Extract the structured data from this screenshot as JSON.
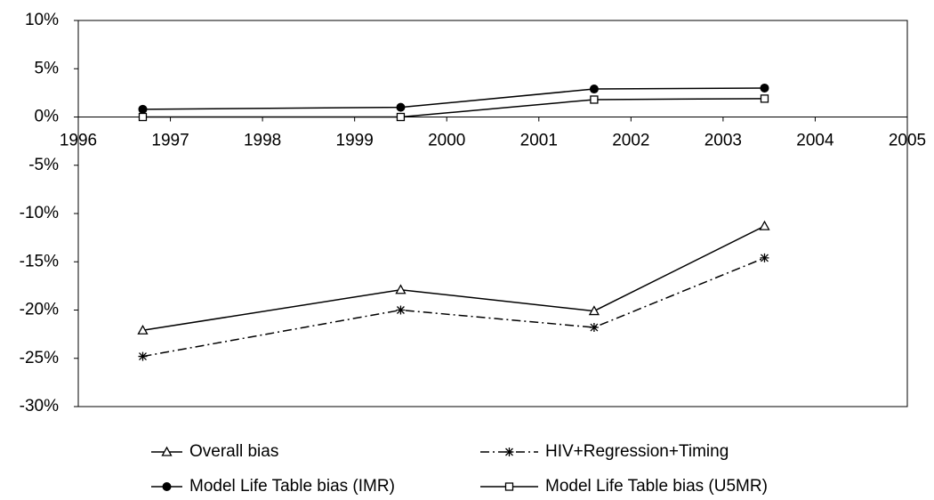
{
  "chart_data": {
    "type": "line",
    "x": [
      1996.7,
      1999.5,
      2001.6,
      2003.45
    ],
    "series": [
      {
        "name": "Overall bias",
        "color": "#000000",
        "marker": "triangle-open",
        "dash": "solid",
        "values": [
          -22.1,
          -17.9,
          -20.1,
          -11.3
        ]
      },
      {
        "name": "HIV+Regression+Timing",
        "color": "#000000",
        "marker": "star",
        "dash": "dashdot",
        "values": [
          -24.8,
          -20.0,
          -21.8,
          -14.6
        ]
      },
      {
        "name": "Model Life Table bias (IMR)",
        "color": "#000000",
        "marker": "circle-filled",
        "dash": "solid",
        "values": [
          0.8,
          1.0,
          2.9,
          3.0
        ]
      },
      {
        "name": "Model Life Table bias (U5MR)",
        "color": "#000000",
        "marker": "square-open",
        "dash": "solid",
        "values": [
          0.0,
          0.0,
          1.8,
          1.9
        ]
      }
    ],
    "xlim": [
      1996,
      2005
    ],
    "xticks": [
      1996,
      1997,
      1998,
      1999,
      2000,
      2001,
      2002,
      2003,
      2004,
      2005
    ],
    "ylim": [
      -30,
      10
    ],
    "yticks": [
      {
        "value": 10,
        "label": "10%"
      },
      {
        "value": 5,
        "label": "5%"
      },
      {
        "value": 0,
        "label": "0%"
      },
      {
        "value": -5,
        "label": "-5%"
      },
      {
        "value": -10,
        "label": "-10%"
      },
      {
        "value": -15,
        "label": "-15%"
      },
      {
        "value": -20,
        "label": "-20%"
      },
      {
        "value": -25,
        "label": "-25%"
      },
      {
        "value": -30,
        "label": "-30%"
      }
    ],
    "grid": false,
    "legend": "bottom"
  }
}
